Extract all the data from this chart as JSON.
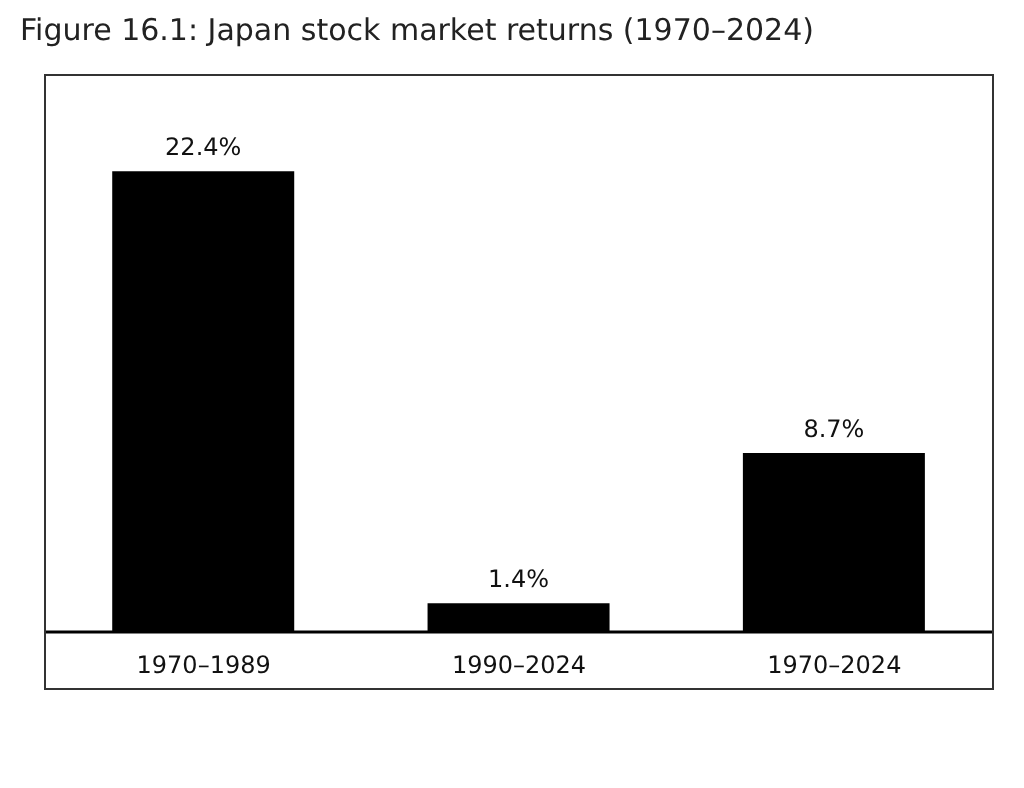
{
  "chart_data": {
    "type": "bar",
    "title": "Figure 16.1: Japan stock market returns (1970–2024)",
    "categories": [
      "1970–1989",
      "1990–2024",
      "1970–2024"
    ],
    "values": [
      22.4,
      1.4,
      8.7
    ],
    "value_labels": [
      "22.4%",
      "1.4%",
      "8.7%"
    ],
    "color": "#000000",
    "grid": false,
    "legend": false
  }
}
